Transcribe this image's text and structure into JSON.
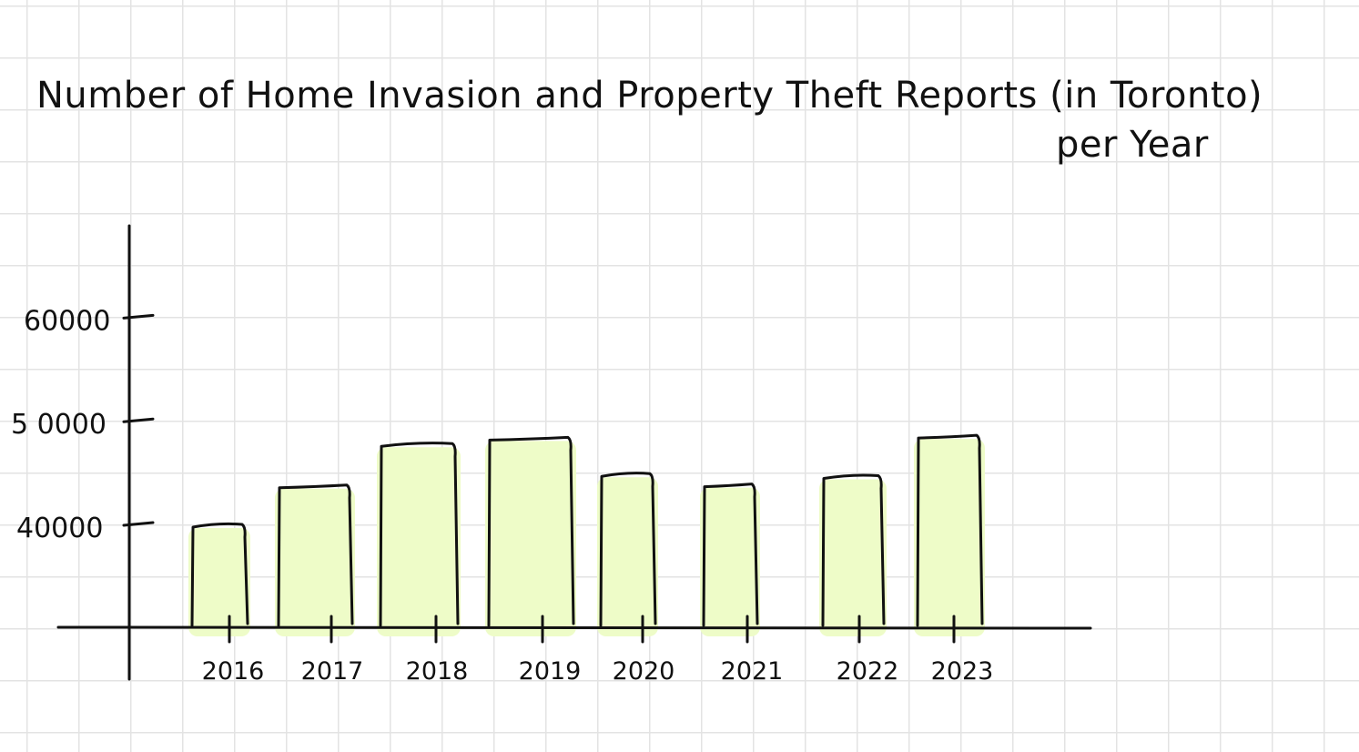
{
  "chart_data": {
    "type": "bar",
    "title": "Number of Home Invasion and Property Theft Reports (in Toronto)",
    "subtitle": "per Year",
    "xlabel": "",
    "ylabel": "",
    "categories": [
      "2016",
      "2017",
      "2018",
      "2019",
      "2020",
      "2021",
      "2022",
      "2023"
    ],
    "values": [
      40000,
      43800,
      47800,
      48400,
      44900,
      43900,
      44700,
      48600
    ],
    "yticks": [
      {
        "value": 40000,
        "label": "40000"
      },
      {
        "value": 50000,
        "label": "5 0000"
      },
      {
        "value": 60000,
        "label": "60000"
      }
    ],
    "ylim": [
      30000,
      66000
    ],
    "grid": true,
    "legend": "none",
    "colors": {
      "bar_fill": "#eefcc8",
      "bar_outline": "#111111",
      "axis": "#111111",
      "grid": "#e3e3e3"
    }
  }
}
